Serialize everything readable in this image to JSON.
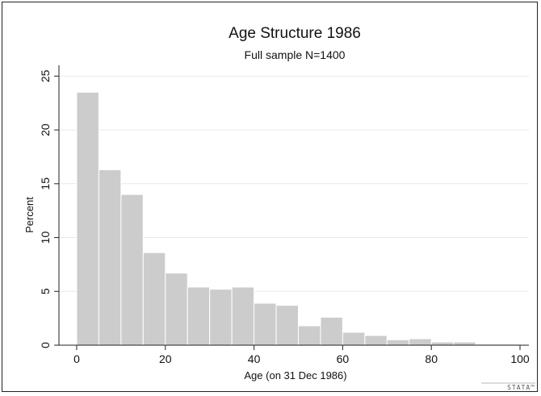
{
  "chart_data": {
    "type": "bar",
    "title": "Age Structure 1986",
    "subtitle": "Full sample N=1400",
    "xlabel": "Age (on 31 Dec 1986)",
    "ylabel": "Percent",
    "bin_width": 5,
    "bins": [
      0,
      5,
      10,
      15,
      20,
      25,
      30,
      35,
      40,
      45,
      50,
      55,
      60,
      65,
      70,
      75,
      80,
      85,
      90,
      95
    ],
    "values": [
      23.5,
      16.3,
      14.0,
      8.6,
      6.7,
      5.4,
      5.2,
      5.4,
      3.9,
      3.7,
      1.8,
      2.6,
      1.2,
      0.9,
      0.5,
      0.6,
      0.3,
      0.3,
      0.1,
      0.1
    ],
    "xlim": [
      -4,
      102
    ],
    "ylim": [
      0,
      26
    ],
    "xticks": [
      0,
      20,
      40,
      60,
      80,
      100
    ],
    "yticks": [
      0,
      5,
      10,
      15,
      20,
      25
    ],
    "grid": true,
    "colors": {
      "bar": "#cccccc",
      "bar_edge": "#ffffff",
      "grid": "#e8e8e8",
      "axis": "#222222"
    }
  },
  "watermark": "STATA™"
}
